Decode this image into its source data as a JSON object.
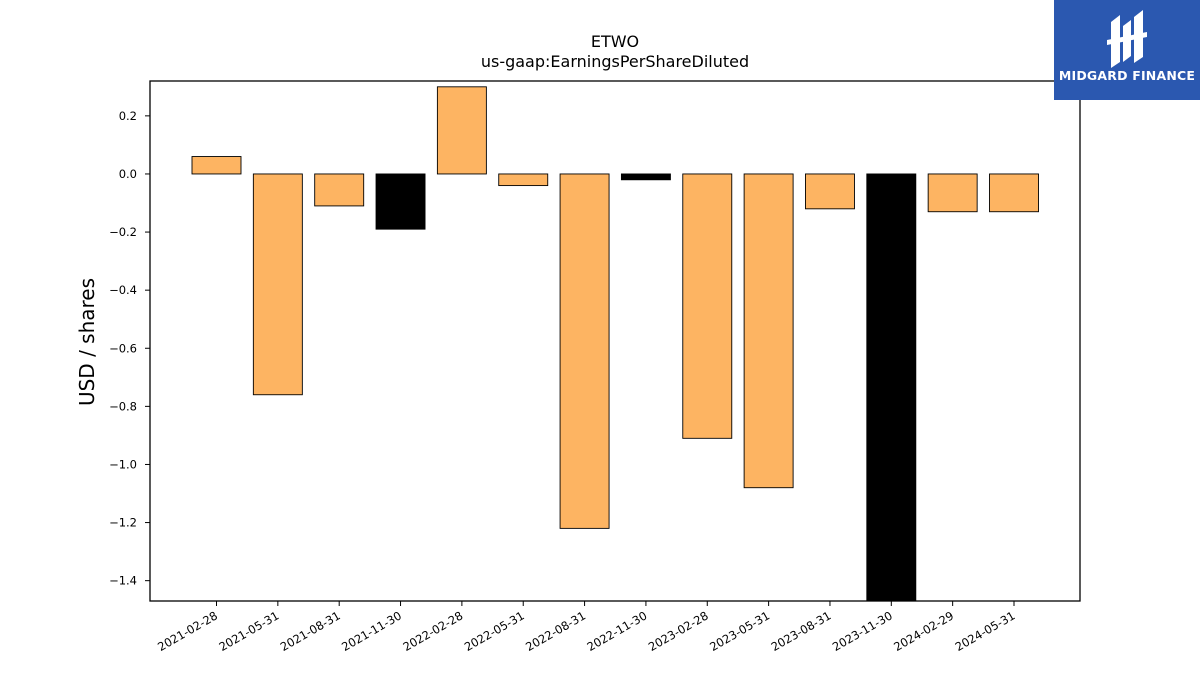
{
  "chart_data": {
    "type": "bar",
    "title": "ETWO",
    "subtitle": "us-gaap:EarningsPerShareDiluted",
    "xlabel": "",
    "ylabel": "USD / shares",
    "ylim": [
      -1.47,
      0.32
    ],
    "yticks": [
      0.2,
      0.0,
      -0.2,
      -0.4,
      -0.6,
      -0.8,
      -1.0,
      -1.2,
      -1.4
    ],
    "ytick_labels": [
      "0.2",
      "0.0",
      "−0.2",
      "−0.4",
      "−0.6",
      "−0.8",
      "−1.0",
      "−1.2",
      "−1.4"
    ],
    "categories": [
      "2021-02-28",
      "2021-05-31",
      "2021-08-31",
      "2021-11-30",
      "2022-02-28",
      "2022-05-31",
      "2022-08-31",
      "2022-11-30",
      "2023-02-28",
      "2023-05-31",
      "2023-08-31",
      "2023-11-30",
      "2024-02-29",
      "2024-05-31"
    ],
    "values": [
      0.06,
      -0.76,
      -0.11,
      -0.19,
      0.3,
      -0.04,
      -1.22,
      -0.02,
      -0.91,
      -1.08,
      -0.12,
      -1.47,
      -0.13,
      -0.13
    ],
    "bar_colors": [
      "#fdb462",
      "#fdb462",
      "#fdb462",
      "#000000",
      "#fdb462",
      "#fdb462",
      "#fdb462",
      "#000000",
      "#fdb462",
      "#fdb462",
      "#fdb462",
      "#000000",
      "#fdb462",
      "#fdb462"
    ],
    "grid": false
  },
  "logo": {
    "text": "MIDGARD FINANCE",
    "background": "#2b58b0"
  }
}
